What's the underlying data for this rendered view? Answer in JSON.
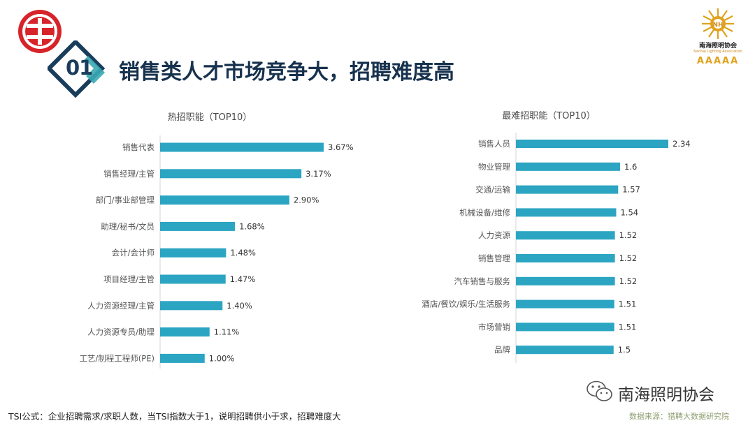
{
  "header": {
    "section_number": "01",
    "title": "销售类人才市场竞争大，招聘难度高"
  },
  "logo_right": {
    "org_name": "南海照明协会",
    "org_name_en": "Nanhai Lighting Association",
    "rating": "AAAAA"
  },
  "colors": {
    "bar": "#2ba5c2",
    "title": "#17324e",
    "logo_red": "#d7232a",
    "badge_teal": "#3aaab4",
    "badge_navy": "#1a3d5c"
  },
  "chart_data": [
    {
      "type": "bar",
      "orientation": "horizontal",
      "title": "热招职能（TOP10）",
      "categories": [
        "销售代表",
        "销售经理/主管",
        "部门/事业部管理",
        "助理/秘书/文员",
        "会计/会计师",
        "项目经理/主管",
        "人力资源经理/主管",
        "人力资源专员/助理",
        "工艺/制程工程师(PE)"
      ],
      "values": [
        3.67,
        3.17,
        2.9,
        1.68,
        1.48,
        1.47,
        1.4,
        1.11,
        1.0
      ],
      "value_labels": [
        "3.67%",
        "3.17%",
        "2.90%",
        "1.68%",
        "1.48%",
        "1.47%",
        "1.40%",
        "1.11%",
        "1.00%"
      ],
      "unit": "%",
      "xlim": [
        0,
        3.67
      ],
      "grid": false,
      "legend": "none"
    },
    {
      "type": "bar",
      "orientation": "horizontal",
      "title": "最难招职能（TOP10）",
      "categories": [
        "销售人员",
        "物业管理",
        "交通/运输",
        "机械设备/维修",
        "人力资源",
        "销售管理",
        "汽车销售与服务",
        "酒店/餐饮/娱乐/生活服务",
        "市场营销",
        "品牌"
      ],
      "values": [
        2.34,
        1.6,
        1.57,
        1.54,
        1.52,
        1.52,
        1.52,
        1.51,
        1.51,
        1.5
      ],
      "value_labels": [
        "2.34",
        "1.6",
        "1.57",
        "1.54",
        "1.52",
        "1.52",
        "1.52",
        "1.51",
        "1.51",
        "1.5"
      ],
      "xlim": [
        0,
        2.34
      ],
      "grid": false,
      "legend": "none"
    }
  ],
  "watermark": {
    "account_name": "南海照明协会"
  },
  "footer": {
    "formula_note": "TSI公式：企业招聘需求/求职人数，当TSI指数大于1，说明招聘供小于求，招聘难度大",
    "source": "数据来源：猎聘大数据研究院"
  }
}
